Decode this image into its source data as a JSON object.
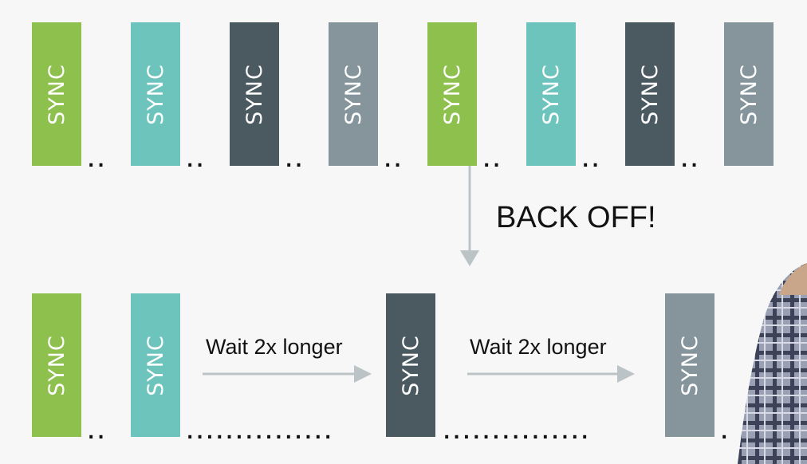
{
  "top_row": {
    "boxes": [
      {
        "label": "SYNC",
        "color": "#8dc04d"
      },
      {
        "label": "SYNC",
        "color": "#6cc4bd"
      },
      {
        "label": "SYNC",
        "color": "#4b5960"
      },
      {
        "label": "SYNC",
        "color": "#86959c"
      },
      {
        "label": "SYNC",
        "color": "#8dc04d"
      },
      {
        "label": "SYNC",
        "color": "#6cc4bd"
      },
      {
        "label": "SYNC",
        "color": "#4b5960"
      },
      {
        "label": "SYNC",
        "color": "#86959c"
      }
    ]
  },
  "back_off_label": "BACK OFF!",
  "bottom_row": {
    "boxes": [
      {
        "label": "SYNC",
        "color": "#8dc04d"
      },
      {
        "label": "SYNC",
        "color": "#6cc4bd"
      },
      {
        "label": "SYNC",
        "color": "#4b5960"
      },
      {
        "label": "SYNC",
        "color": "#86959c"
      }
    ],
    "wait_labels": [
      "Wait 2x longer",
      "Wait 2x longer"
    ]
  },
  "arrow_color": "#bcc3c6"
}
